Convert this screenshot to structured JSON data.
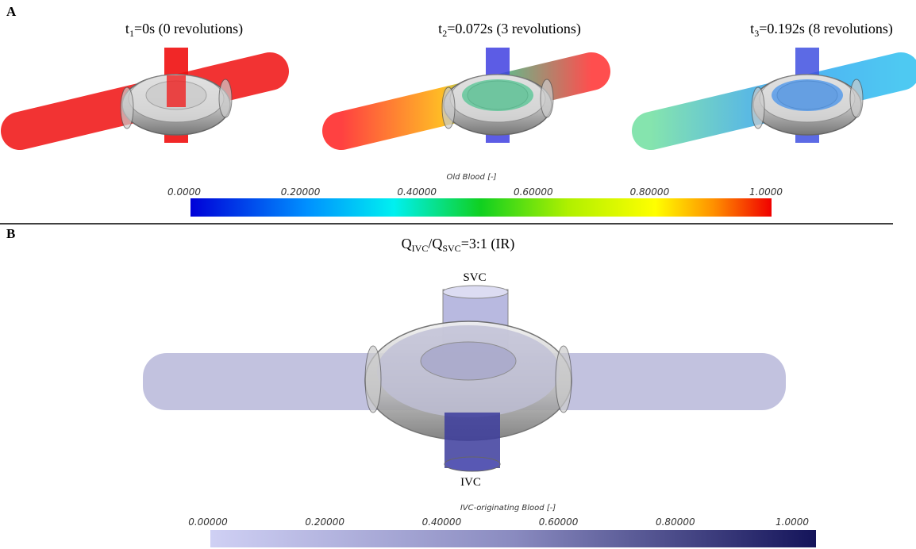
{
  "panel_a": {
    "label": "A",
    "snapshots": [
      {
        "base": "t",
        "sub": "1",
        "rest": "=0s (0 revolutions)"
      },
      {
        "base": "t",
        "sub": "2",
        "rest": "=0.072s (3 revolutions)"
      },
      {
        "base": "t",
        "sub": "3",
        "rest": "=0.192s (8 revolutions)"
      }
    ],
    "colorbar": {
      "title": "Old Blood [-]",
      "ticks": [
        "0.0000",
        "0.20000",
        "0.40000",
        "0.60000",
        "0.80000",
        "1.0000"
      ]
    }
  },
  "panel_b": {
    "label": "B",
    "title": {
      "q1": "Q",
      "sub1": "IVC",
      "slash": "/Q",
      "sub2": "SVC",
      "rest": "=3:1 (IR)"
    },
    "top_label": "SVC",
    "bottom_label": "IVC",
    "colorbar": {
      "title": "IVC-originating Blood [-]",
      "ticks": [
        "0.00000",
        "0.20000",
        "0.40000",
        "0.60000",
        "0.80000",
        "1.0000"
      ]
    }
  }
}
